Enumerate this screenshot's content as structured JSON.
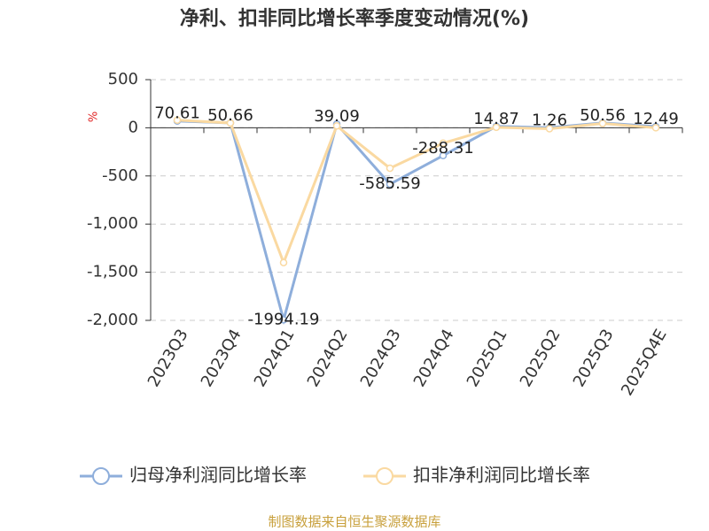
{
  "chart_data": {
    "type": "line",
    "title": "净利、扣非同比增长率季度变动情况(%)",
    "y_label": "%",
    "categories": [
      "2023Q3",
      "2023Q4",
      "2024Q1",
      "2024Q2",
      "2024Q3",
      "2024Q4",
      "2025Q1",
      "2025Q2",
      "2025Q3",
      "2025Q4E"
    ],
    "series": [
      {
        "name": "归母净利润同比增长率",
        "color": "#8eaedb",
        "values": [
          70.61,
          50.66,
          -1994.19,
          39.09,
          -585.59,
          -288.31,
          14.87,
          1.26,
          50.56,
          12.49
        ]
      },
      {
        "name": "扣非净利润同比增长率",
        "color": "#fad9a1",
        "values": [
          80,
          50,
          -1400,
          20,
          -420,
          -160,
          5,
          -10,
          45,
          0
        ]
      }
    ],
    "ylim": [
      -2000,
      500
    ],
    "yticks": [
      {
        "value": -2000,
        "label": "-2,000"
      },
      {
        "value": -1500,
        "label": "-1,500"
      },
      {
        "value": -1000,
        "label": "-1,000"
      },
      -500,
      0,
      500
    ],
    "grid": true,
    "source": "制图数据来自恒生聚源数据库"
  }
}
